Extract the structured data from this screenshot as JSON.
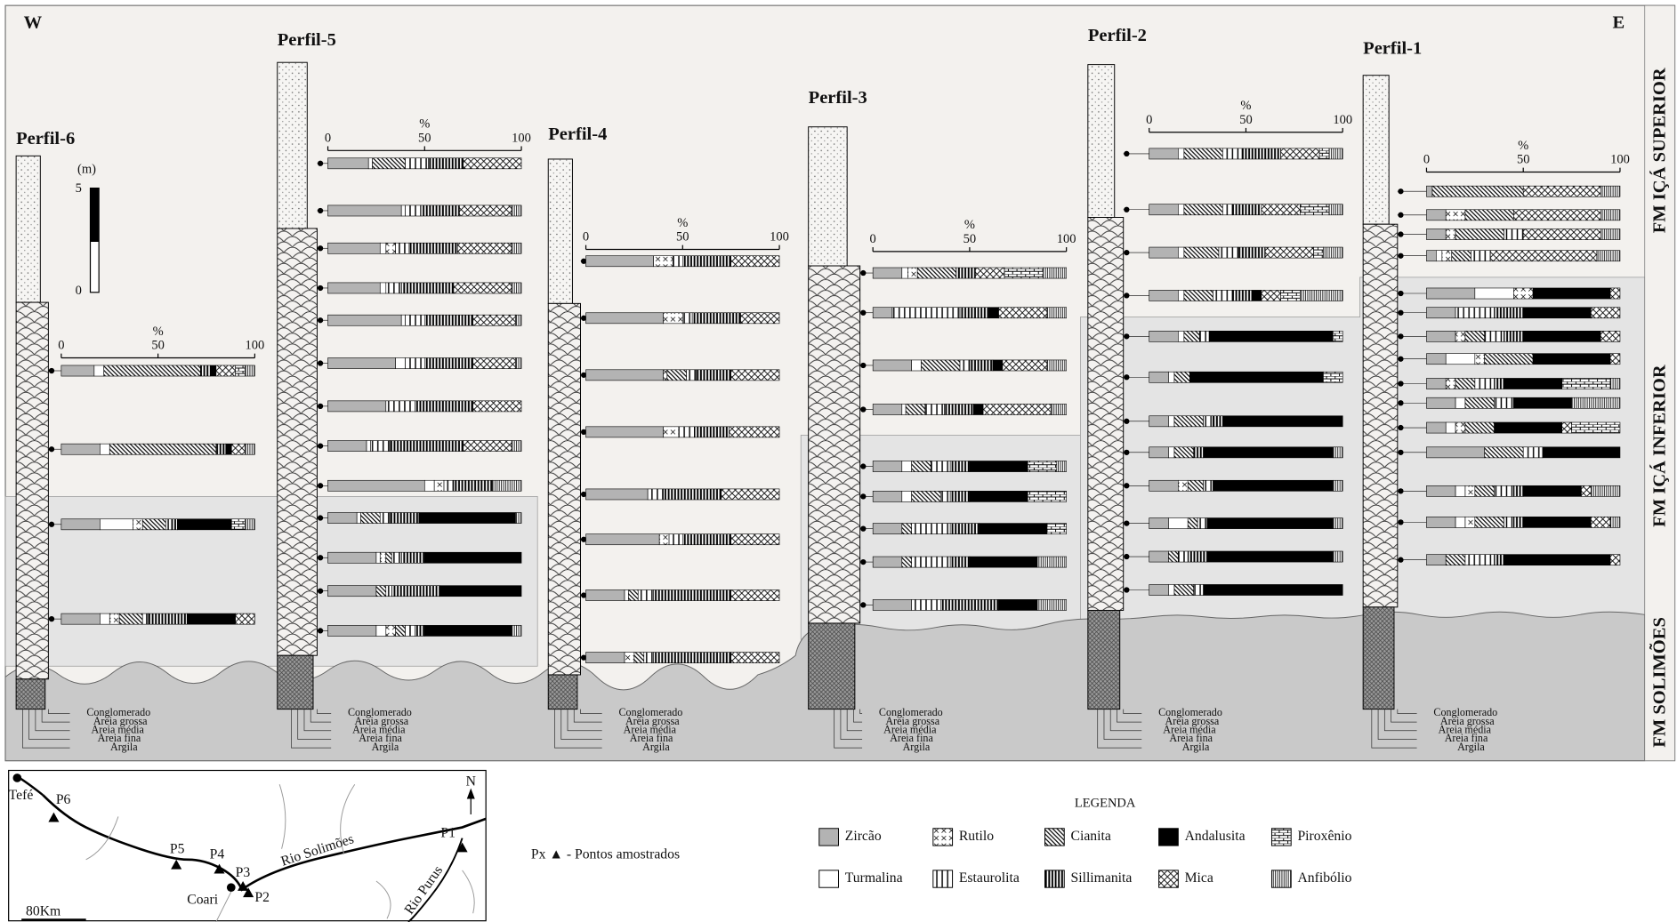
{
  "west": "W",
  "east": "E",
  "scale": {
    "unit": "(m)",
    "top": "5",
    "bottom": "0"
  },
  "axis": {
    "label": "%",
    "ticks": [
      0,
      50,
      100
    ]
  },
  "grain_sizes": [
    "Conglomerado",
    "Areia grossa",
    "Areia média",
    "Areia fina",
    "Argila"
  ],
  "formations": [
    "FM IÇÁ SUPERIOR",
    "FM IÇÁ INFERIOR",
    "FM SOLIMÕES"
  ],
  "profiles": [
    {
      "name": "Perfil-6",
      "samples": [
        [
          17,
          5,
          0,
          50,
          0,
          5,
          3,
          10,
          5,
          5
        ],
        [
          20,
          5,
          0,
          55,
          0,
          5,
          3,
          7,
          0,
          5
        ],
        [
          20,
          17,
          5,
          12,
          3,
          3,
          28,
          0,
          7,
          5
        ],
        [
          20,
          5,
          5,
          12,
          3,
          20,
          25,
          10,
          0,
          0
        ]
      ]
    },
    {
      "name": "Perfil-5",
      "samples": [
        [
          21,
          2,
          0,
          17,
          12,
          18,
          0,
          30,
          0,
          0
        ],
        [
          38,
          2,
          0,
          0,
          8,
          20,
          0,
          27,
          0,
          5
        ],
        [
          27,
          3,
          5,
          0,
          7,
          25,
          0,
          28,
          0,
          5
        ],
        [
          27,
          3,
          0,
          0,
          8,
          27,
          0,
          30,
          0,
          5
        ],
        [
          38,
          2,
          0,
          0,
          10,
          25,
          0,
          22,
          0,
          3
        ],
        [
          35,
          5,
          0,
          0,
          10,
          25,
          0,
          22,
          0,
          3
        ],
        [
          30,
          0,
          0,
          0,
          15,
          30,
          0,
          25,
          0,
          0
        ],
        [
          20,
          2,
          0,
          0,
          10,
          38,
          0,
          25,
          0,
          5
        ],
        [
          50,
          5,
          5,
          0,
          5,
          20,
          0,
          0,
          0,
          15
        ],
        [
          15,
          2,
          0,
          10,
          5,
          15,
          50,
          0,
          0,
          3
        ],
        [
          25,
          2,
          3,
          3,
          5,
          12,
          50,
          0,
          0,
          0
        ],
        [
          25,
          0,
          0,
          5,
          3,
          25,
          42,
          0,
          0,
          0
        ],
        [
          25,
          5,
          5,
          5,
          5,
          5,
          45,
          0,
          0,
          5
        ]
      ]
    },
    {
      "name": "Perfil-4",
      "samples": [
        [
          35,
          0,
          10,
          0,
          5,
          25,
          0,
          25,
          0,
          0
        ],
        [
          40,
          0,
          10,
          0,
          5,
          25,
          0,
          20,
          0,
          0
        ],
        [
          40,
          0,
          2,
          10,
          5,
          18,
          0,
          25,
          0,
          0
        ],
        [
          40,
          0,
          8,
          0,
          8,
          18,
          0,
          26,
          0,
          0
        ],
        [
          32,
          0,
          0,
          0,
          8,
          30,
          0,
          30,
          0,
          0
        ],
        [
          38,
          0,
          5,
          0,
          7,
          25,
          0,
          25,
          0,
          0
        ],
        [
          20,
          2,
          0,
          5,
          8,
          40,
          0,
          25,
          0,
          0
        ],
        [
          20,
          0,
          5,
          5,
          5,
          40,
          0,
          25,
          0,
          0
        ]
      ]
    },
    {
      "name": "Perfil-3",
      "samples": [
        [
          15,
          3,
          5,
          20,
          0,
          10,
          0,
          15,
          20,
          12
        ],
        [
          10,
          0,
          0,
          0,
          35,
          15,
          5,
          25,
          0,
          10
        ],
        [
          20,
          5,
          0,
          20,
          5,
          12,
          5,
          23,
          0,
          10
        ],
        [
          15,
          2,
          0,
          10,
          10,
          15,
          5,
          35,
          0,
          8
        ],
        [
          15,
          5,
          0,
          10,
          10,
          10,
          30,
          0,
          15,
          5
        ],
        [
          15,
          5,
          0,
          15,
          5,
          10,
          30,
          0,
          20,
          0
        ],
        [
          15,
          0,
          0,
          5,
          20,
          15,
          35,
          0,
          10,
          0
        ],
        [
          15,
          0,
          0,
          5,
          20,
          10,
          35,
          0,
          0,
          15
        ],
        [
          20,
          0,
          0,
          0,
          15,
          30,
          20,
          0,
          0,
          15
        ]
      ]
    },
    {
      "name": "Perfil-2",
      "samples": [
        [
          15,
          3,
          0,
          20,
          10,
          20,
          0,
          20,
          5,
          7
        ],
        [
          15,
          3,
          0,
          20,
          5,
          15,
          0,
          20,
          15,
          7
        ],
        [
          15,
          3,
          0,
          18,
          10,
          14,
          0,
          25,
          5,
          10
        ],
        [
          15,
          3,
          0,
          15,
          10,
          10,
          5,
          10,
          10,
          22
        ],
        [
          15,
          3,
          0,
          8,
          5,
          0,
          64,
          0,
          5,
          0
        ],
        [
          10,
          3,
          0,
          8,
          0,
          0,
          69,
          0,
          10,
          0
        ],
        [
          10,
          3,
          0,
          15,
          5,
          5,
          62,
          0,
          0,
          0
        ],
        [
          10,
          3,
          0,
          10,
          0,
          5,
          67,
          0,
          0,
          5
        ],
        [
          15,
          0,
          5,
          8,
          5,
          0,
          62,
          0,
          0,
          5
        ],
        [
          10,
          10,
          0,
          5,
          5,
          0,
          65,
          0,
          0,
          5
        ],
        [
          10,
          0,
          0,
          5,
          5,
          10,
          65,
          0,
          0,
          5
        ],
        [
          10,
          3,
          0,
          10,
          5,
          0,
          72,
          0,
          0,
          0
        ]
      ]
    },
    {
      "name": "Perfil-1",
      "samples": [
        [
          3,
          0,
          0,
          47,
          0,
          0,
          0,
          40,
          0,
          10
        ],
        [
          10,
          0,
          10,
          25,
          0,
          0,
          0,
          45,
          0,
          10
        ],
        [
          10,
          0,
          5,
          25,
          10,
          0,
          0,
          40,
          0,
          10
        ],
        [
          5,
          3,
          5,
          10,
          10,
          0,
          0,
          55,
          0,
          12
        ],
        [
          25,
          20,
          10,
          0,
          0,
          0,
          40,
          5,
          0,
          0
        ],
        [
          15,
          0,
          0,
          0,
          20,
          15,
          35,
          15,
          0,
          0
        ],
        [
          15,
          0,
          5,
          10,
          10,
          10,
          40,
          10,
          0,
          0
        ],
        [
          10,
          15,
          5,
          25,
          0,
          0,
          40,
          5,
          0,
          0
        ],
        [
          10,
          0,
          5,
          10,
          10,
          5,
          30,
          0,
          25,
          5
        ],
        [
          15,
          5,
          0,
          15,
          10,
          0,
          30,
          0,
          0,
          25
        ],
        [
          10,
          5,
          5,
          15,
          0,
          0,
          35,
          5,
          25,
          0
        ],
        [
          30,
          0,
          0,
          20,
          10,
          0,
          40,
          0,
          0,
          0
        ],
        [
          15,
          5,
          5,
          10,
          10,
          5,
          30,
          5,
          0,
          15
        ],
        [
          15,
          5,
          5,
          15,
          5,
          5,
          35,
          10,
          0,
          5
        ],
        [
          10,
          0,
          0,
          10,
          15,
          5,
          55,
          5,
          0,
          0
        ]
      ]
    }
  ],
  "legend": {
    "title": "LEGENDA",
    "minerals": [
      "Zircão",
      "Turmalina",
      "Rutilo",
      "Cianita",
      "Estaurolita",
      "Sillimanita",
      "Andalusita",
      "Mica",
      "Piroxênio",
      "Anfibólio"
    ]
  },
  "map": {
    "places": [
      "Tefé",
      "P6",
      "P5",
      "P4",
      "P3",
      "P2",
      "P1",
      "Coari"
    ],
    "rivers": [
      "Rio Solimões",
      "Rio Purus"
    ],
    "north": "N",
    "scale_bar": "80Km",
    "key": "Px ▲ - Pontos amostrados"
  }
}
